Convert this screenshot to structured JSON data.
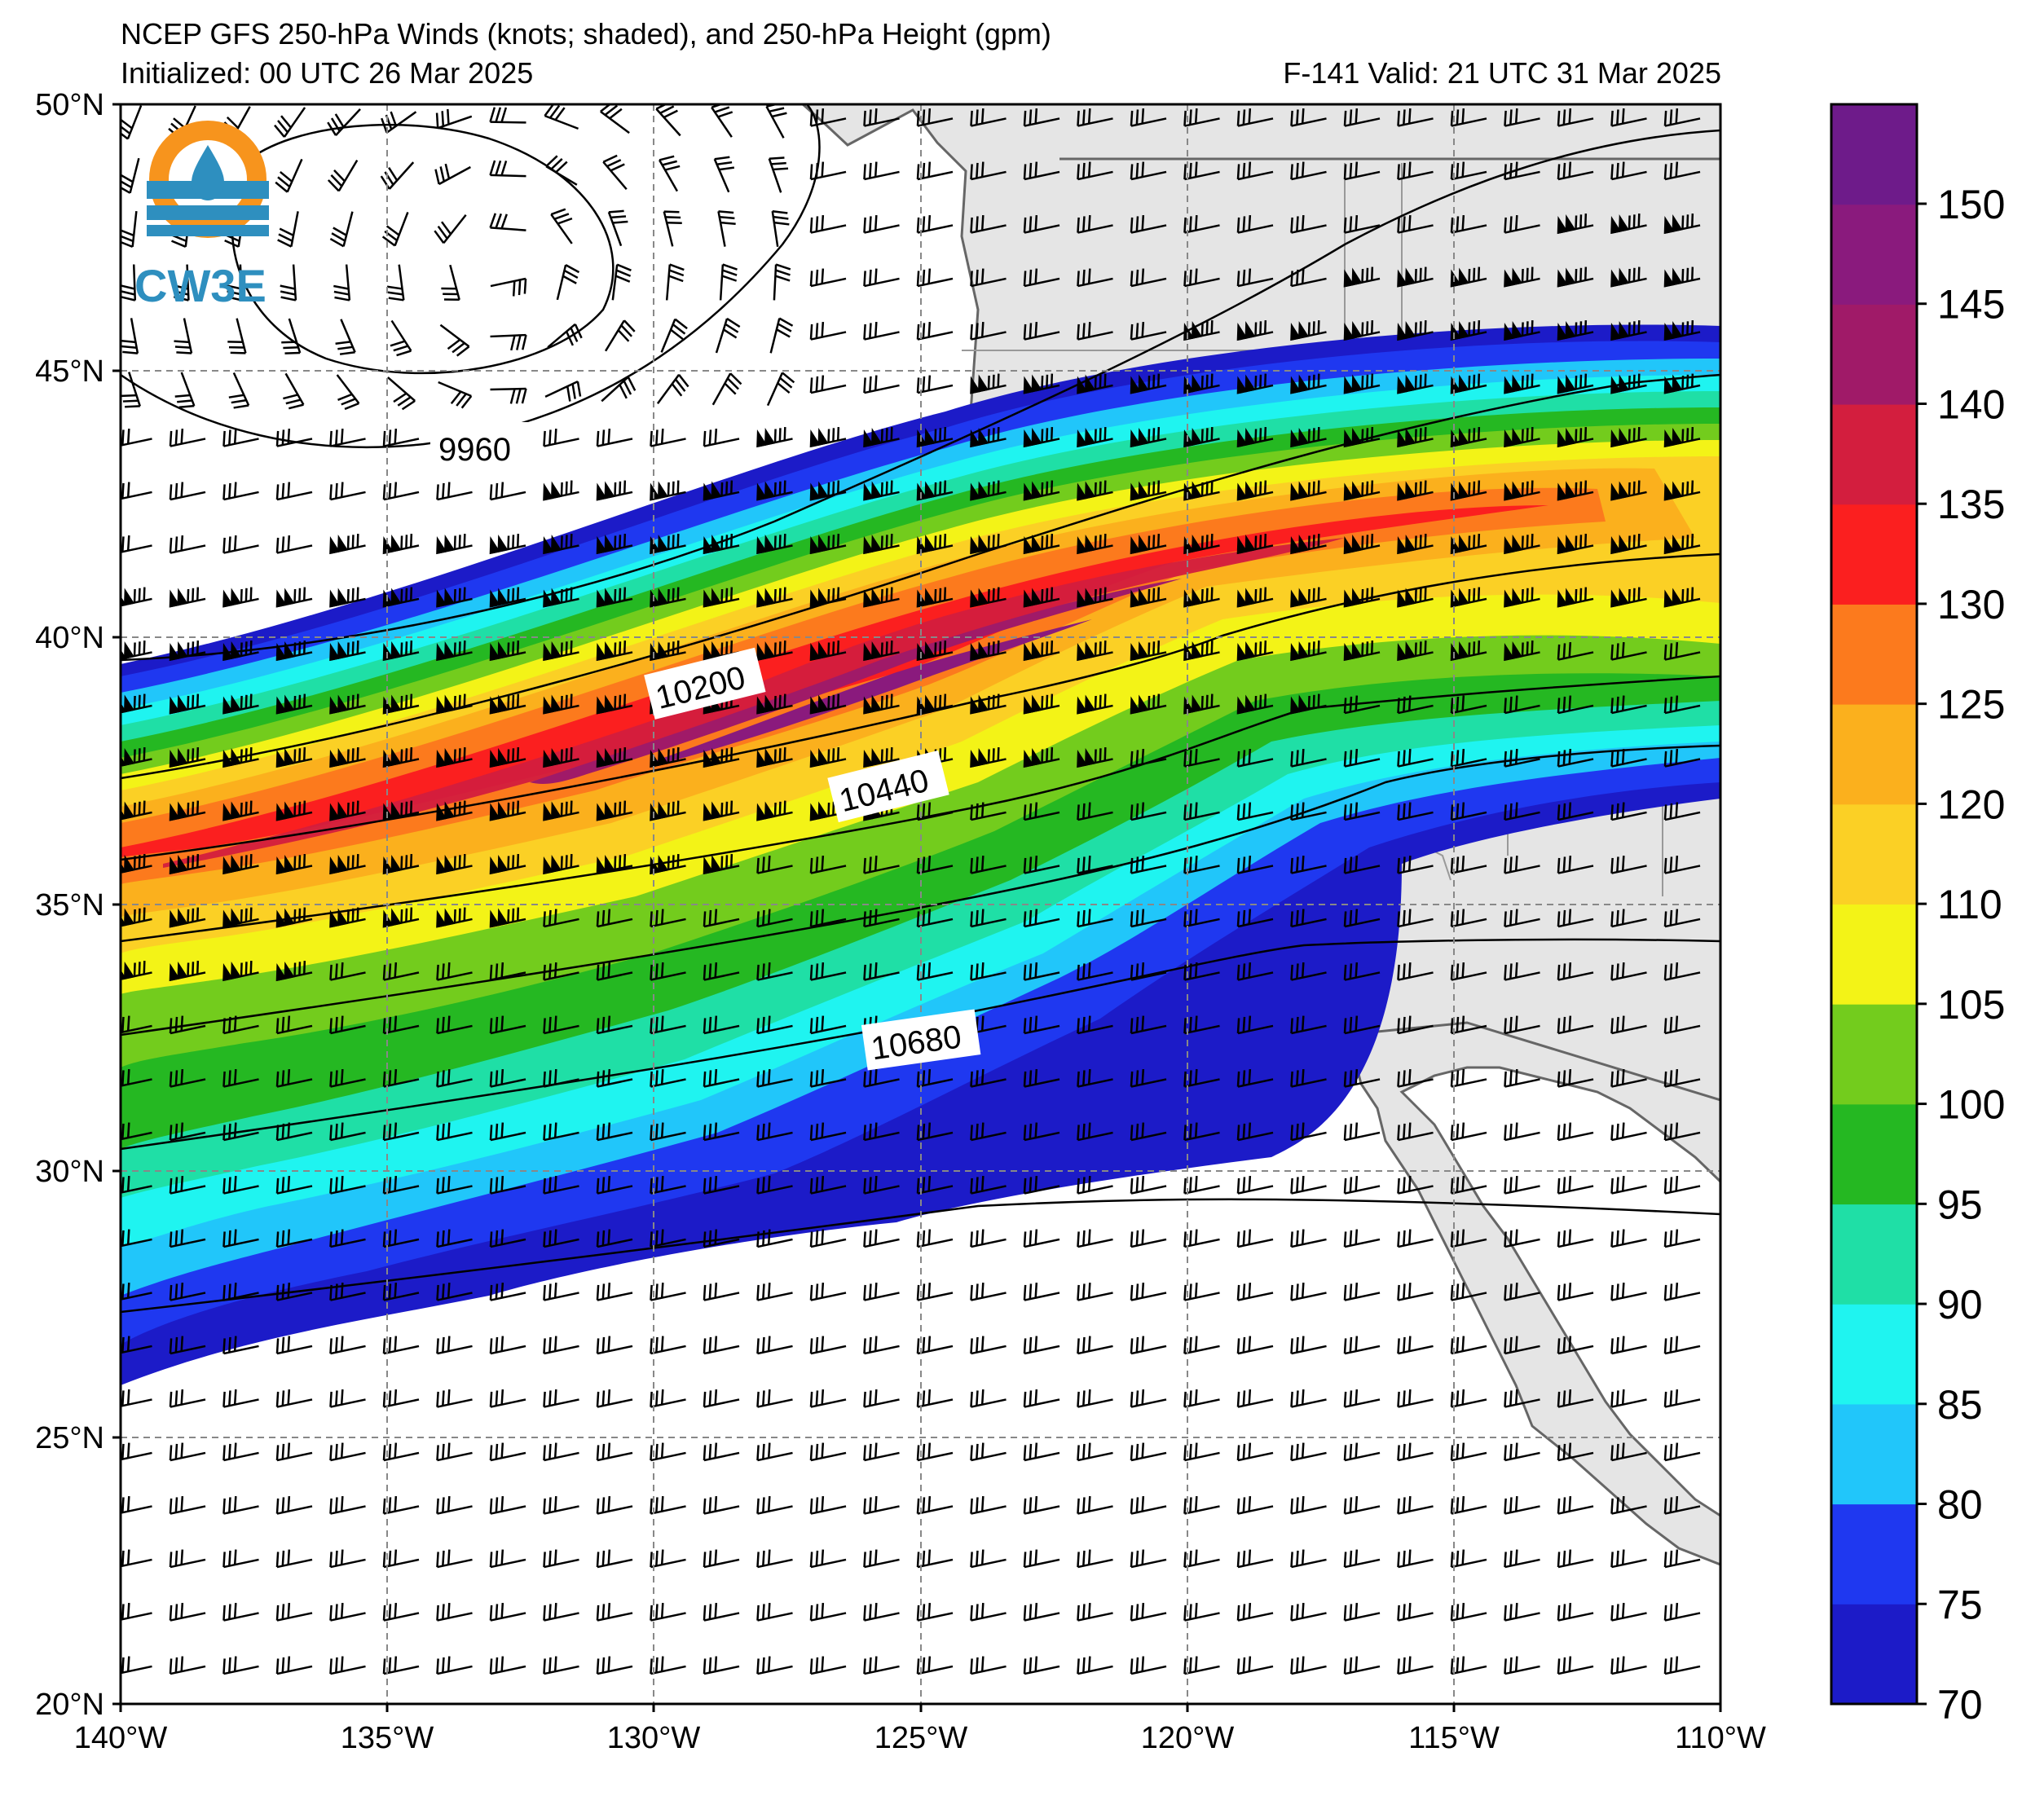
{
  "header": {
    "title": "NCEP GFS 250-hPa Winds (knots; shaded), and 250-hPa Height (gpm)",
    "initialized": "Initialized: 00 UTC 26 Mar 2025",
    "valid": "F-141  Valid: 21 UTC 31 Mar 2025"
  },
  "logo": {
    "text": "CW3E"
  },
  "map": {
    "lon_range": [
      -140,
      -110
    ],
    "lat_range": [
      20,
      50
    ],
    "lat_labels": [
      "50°N",
      "45°N",
      "40°N",
      "35°N",
      "30°N",
      "25°N",
      "20°N"
    ],
    "lon_labels": [
      "140°W",
      "135°W",
      "130°W",
      "125°W",
      "120°W",
      "115°W",
      "110°W"
    ],
    "height_labels": [
      "9960",
      "10200",
      "10440",
      "10680"
    ],
    "land_color": "#e5e5e5",
    "ocean_color": "#ffffff",
    "coast_color": "#666666"
  },
  "colorbar": {
    "labels": [
      "150",
      "145",
      "140",
      "135",
      "130",
      "125",
      "120",
      "110",
      "105",
      "100",
      "95",
      "90",
      "85",
      "80",
      "75",
      "70"
    ],
    "colors": [
      "#1c1bc8",
      "#1f38f0",
      "#21c6fa",
      "#1ff4f0",
      "#1fdfa6",
      "#25b822",
      "#73cc1d",
      "#f3f317",
      "#fbd025",
      "#fbb01d",
      "#fc7a1d",
      "#fb1f1f",
      "#d31e3e",
      "#a01a68",
      "#8a1a7d",
      "#6e1b8a"
    ]
  }
}
